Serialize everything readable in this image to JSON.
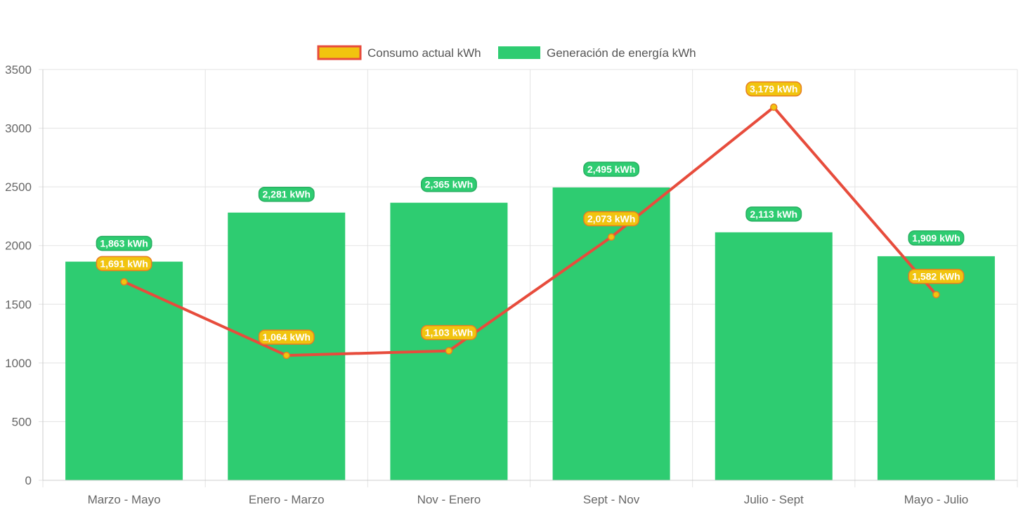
{
  "chart_data": {
    "type": "bar",
    "categories": [
      "Marzo - Mayo",
      "Enero - Marzo",
      "Nov - Enero",
      "Sept - Nov",
      "Julio - Sept",
      "Mayo - Julio"
    ],
    "series": [
      {
        "name": "Consumo actual kWh",
        "type": "line",
        "values": [
          1691,
          1064,
          1103,
          2073,
          3179,
          1582
        ],
        "labels": [
          "1,691 kWh",
          "1,064 kWh",
          "1,103 kWh",
          "2,073 kWh",
          "3,179 kWh",
          "1,582 kWh"
        ],
        "color": "#e74c3c",
        "fill": "#f1c40f"
      },
      {
        "name": "Generación de energía kWh",
        "type": "bar",
        "values": [
          1863,
          2281,
          2365,
          2495,
          2113,
          1909
        ],
        "labels": [
          "1,863 kWh",
          "2,281 kWh",
          "2,365 kWh",
          "2,495 kWh",
          "2,113 kWh",
          "1,909 kWh"
        ],
        "color": "#2ecc71"
      }
    ],
    "yticks": [
      "0",
      "500",
      "1000",
      "1500",
      "2000",
      "2500",
      "3000",
      "3500"
    ],
    "ylim": [
      0,
      3500
    ],
    "grid": true,
    "legend_position": "top-center",
    "title": "",
    "xlabel": "",
    "ylabel": ""
  }
}
